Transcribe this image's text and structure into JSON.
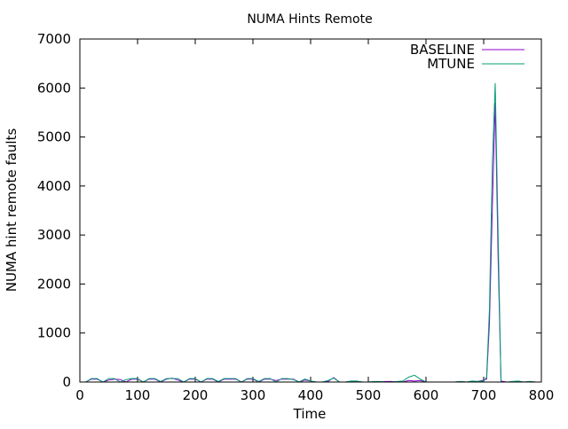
{
  "chart_data": {
    "type": "line",
    "title": "NUMA Hints Remote",
    "xlabel": "Time",
    "ylabel": "NUMA hint remote faults",
    "xlim": [
      0,
      800
    ],
    "ylim": [
      0,
      7000
    ],
    "xticks": [
      0,
      100,
      200,
      300,
      400,
      500,
      600,
      700,
      800
    ],
    "yticks": [
      0,
      1000,
      2000,
      3000,
      4000,
      5000,
      6000,
      7000
    ],
    "grid": false,
    "legend": "top-right",
    "series": [
      {
        "name": "BASELINE",
        "color": "#9400d3",
        "points": [
          [
            10,
            0
          ],
          [
            20,
            60
          ],
          [
            30,
            60
          ],
          [
            40,
            0
          ],
          [
            50,
            40
          ],
          [
            60,
            60
          ],
          [
            70,
            50
          ],
          [
            80,
            0
          ],
          [
            90,
            60
          ],
          [
            100,
            60
          ],
          [
            110,
            0
          ],
          [
            120,
            60
          ],
          [
            130,
            60
          ],
          [
            140,
            0
          ],
          [
            150,
            60
          ],
          [
            160,
            80
          ],
          [
            170,
            40
          ],
          [
            180,
            0
          ],
          [
            190,
            60
          ],
          [
            200,
            60
          ],
          [
            210,
            0
          ],
          [
            220,
            60
          ],
          [
            230,
            60
          ],
          [
            240,
            0
          ],
          [
            250,
            60
          ],
          [
            260,
            60
          ],
          [
            270,
            60
          ],
          [
            280,
            0
          ],
          [
            290,
            60
          ],
          [
            300,
            60
          ],
          [
            310,
            0
          ],
          [
            320,
            60
          ],
          [
            330,
            60
          ],
          [
            340,
            30
          ],
          [
            350,
            60
          ],
          [
            360,
            60
          ],
          [
            370,
            60
          ],
          [
            380,
            0
          ],
          [
            390,
            40
          ],
          [
            400,
            20
          ],
          [
            410,
            0
          ],
          [
            420,
            0
          ],
          [
            430,
            10
          ],
          [
            440,
            90
          ],
          [
            450,
            0
          ],
          [
            460,
            0
          ],
          [
            470,
            10
          ],
          [
            480,
            10
          ],
          [
            490,
            0
          ],
          [
            500,
            0
          ],
          [
            510,
            0
          ],
          [
            520,
            0
          ],
          [
            530,
            10
          ],
          [
            540,
            10
          ],
          [
            550,
            0
          ],
          [
            560,
            0
          ],
          [
            570,
            30
          ],
          [
            580,
            20
          ],
          [
            590,
            30
          ],
          [
            600,
            0
          ],
          [
            610,
            0
          ],
          [
            620,
            0
          ],
          [
            630,
            0
          ],
          [
            640,
            0
          ],
          [
            650,
            0
          ],
          [
            660,
            10
          ],
          [
            670,
            0
          ],
          [
            680,
            10
          ],
          [
            690,
            10
          ],
          [
            700,
            40
          ],
          [
            705,
            60
          ],
          [
            710,
            1200
          ],
          [
            715,
            3600
          ],
          [
            720,
            5700
          ],
          [
            725,
            2500
          ],
          [
            730,
            20
          ],
          [
            740,
            0
          ],
          [
            750,
            0
          ],
          [
            760,
            10
          ],
          [
            770,
            0
          ],
          [
            780,
            10
          ],
          [
            790,
            0
          ]
        ]
      },
      {
        "name": "MTUNE",
        "color": "#009e73",
        "points": [
          [
            10,
            0
          ],
          [
            20,
            70
          ],
          [
            30,
            70
          ],
          [
            40,
            0
          ],
          [
            50,
            70
          ],
          [
            60,
            70
          ],
          [
            70,
            0
          ],
          [
            80,
            50
          ],
          [
            90,
            70
          ],
          [
            100,
            70
          ],
          [
            110,
            0
          ],
          [
            120,
            70
          ],
          [
            130,
            70
          ],
          [
            140,
            10
          ],
          [
            150,
            70
          ],
          [
            160,
            70
          ],
          [
            170,
            70
          ],
          [
            180,
            0
          ],
          [
            190,
            70
          ],
          [
            200,
            70
          ],
          [
            210,
            0
          ],
          [
            220,
            70
          ],
          [
            230,
            70
          ],
          [
            240,
            10
          ],
          [
            250,
            70
          ],
          [
            260,
            70
          ],
          [
            270,
            70
          ],
          [
            280,
            0
          ],
          [
            290,
            70
          ],
          [
            300,
            70
          ],
          [
            310,
            10
          ],
          [
            320,
            70
          ],
          [
            330,
            70
          ],
          [
            340,
            0
          ],
          [
            350,
            70
          ],
          [
            360,
            70
          ],
          [
            370,
            50
          ],
          [
            380,
            0
          ],
          [
            390,
            60
          ],
          [
            400,
            20
          ],
          [
            410,
            0
          ],
          [
            420,
            0
          ],
          [
            430,
            30
          ],
          [
            440,
            80
          ],
          [
            450,
            0
          ],
          [
            460,
            0
          ],
          [
            470,
            20
          ],
          [
            480,
            20
          ],
          [
            490,
            0
          ],
          [
            500,
            0
          ],
          [
            510,
            10
          ],
          [
            520,
            10
          ],
          [
            530,
            0
          ],
          [
            540,
            0
          ],
          [
            550,
            10
          ],
          [
            560,
            20
          ],
          [
            570,
            100
          ],
          [
            580,
            140
          ],
          [
            590,
            60
          ],
          [
            600,
            0
          ],
          [
            610,
            0
          ],
          [
            620,
            0
          ],
          [
            630,
            0
          ],
          [
            640,
            0
          ],
          [
            650,
            0
          ],
          [
            660,
            10
          ],
          [
            670,
            0
          ],
          [
            680,
            20
          ],
          [
            690,
            10
          ],
          [
            700,
            20
          ],
          [
            705,
            100
          ],
          [
            710,
            1500
          ],
          [
            715,
            4500
          ],
          [
            720,
            6100
          ],
          [
            725,
            3000
          ],
          [
            730,
            0
          ],
          [
            740,
            0
          ],
          [
            750,
            10
          ],
          [
            760,
            20
          ],
          [
            770,
            0
          ],
          [
            780,
            10
          ],
          [
            790,
            0
          ]
        ]
      }
    ]
  }
}
